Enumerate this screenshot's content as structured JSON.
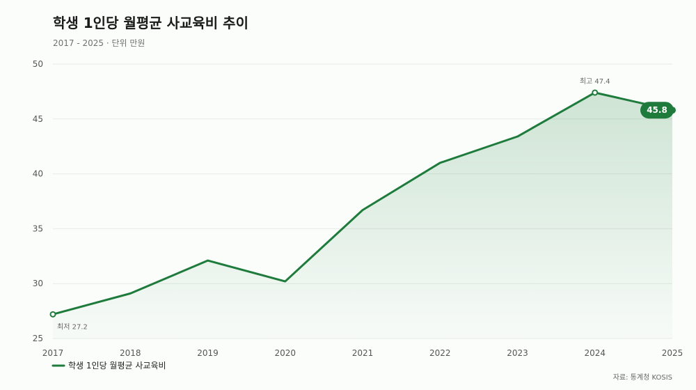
{
  "colors": {
    "accent": "#1e7b3c",
    "fill": "#2e8b4a",
    "grid": "#e6ebe6",
    "badge_text": "#ffffff"
  },
  "chart_data": {
    "type": "area",
    "title": "학생 1인당 월평균 사교육비 추이",
    "subtitle": "2017 - 2025 · 단위 만원",
    "x": [
      "2017",
      "2018",
      "2019",
      "2020",
      "2021",
      "2022",
      "2023",
      "2024",
      "2025"
    ],
    "series": [
      {
        "name": "학생 1인당 월평균 사교육비",
        "values": [
          27.2,
          29.1,
          32.1,
          30.2,
          36.7,
          41.0,
          43.4,
          47.4,
          45.8
        ]
      }
    ],
    "ylim": [
      25,
      50
    ],
    "yticks": [
      25,
      30,
      35,
      40,
      45,
      50
    ],
    "grid": true,
    "legend": "bottom-left",
    "annotations": {
      "min_label": "최저 27.2",
      "max_label": "최고 47.4",
      "last_value_label": "45.8"
    },
    "source": "자료: 통계청 KOSIS"
  }
}
